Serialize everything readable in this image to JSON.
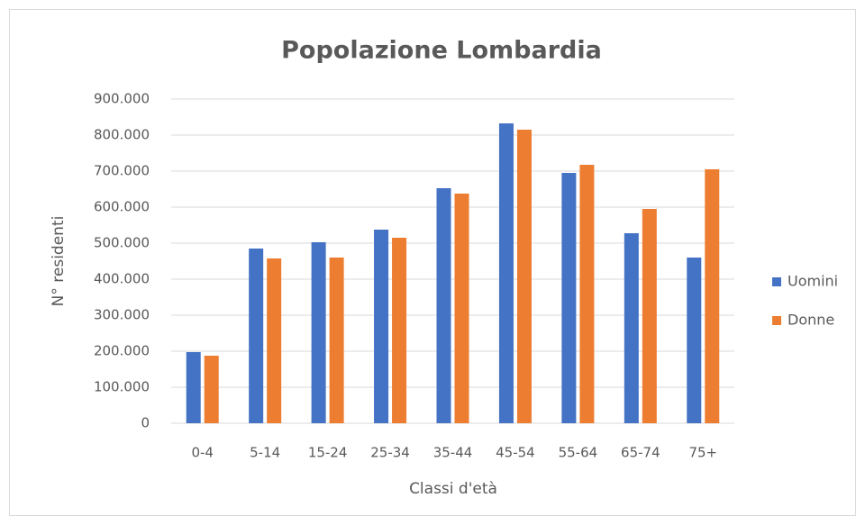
{
  "chart_data": {
    "type": "bar",
    "title": "Popolazione Lombardia",
    "x_label": "Classi d'età",
    "y_label": "N° residenti",
    "categories": [
      "0-4",
      "5-14",
      "15-24",
      "25-34",
      "35-44",
      "45-54",
      "55-64",
      "65-74",
      "75+"
    ],
    "series": [
      {
        "name": "Uomini",
        "color": "#4472c4",
        "values": [
          197500,
          485000,
          502500,
          537500,
          652500,
          832500,
          695000,
          527500,
          460000
        ]
      },
      {
        "name": "Donne",
        "color": "#ed7d31",
        "values": [
          187500,
          457500,
          460000,
          515000,
          637500,
          815000,
          717500,
          595000,
          705000
        ]
      }
    ],
    "ylim": [
      0,
      900000
    ],
    "yticks": [
      0,
      {
        "value": 100000,
        "label": "100.000"
      },
      {
        "value": 200000,
        "label": "200.000"
      },
      {
        "value": 300000,
        "label": "300.000"
      },
      {
        "value": 400000,
        "label": "400.000"
      },
      {
        "value": 500000,
        "label": "500.000"
      },
      {
        "value": 600000,
        "label": "600.000"
      },
      {
        "value": 700000,
        "label": "700.000"
      },
      {
        "value": 800000,
        "label": "800.000"
      },
      {
        "value": 900000,
        "label": "900.000"
      }
    ],
    "grid": true,
    "legend": "right"
  }
}
